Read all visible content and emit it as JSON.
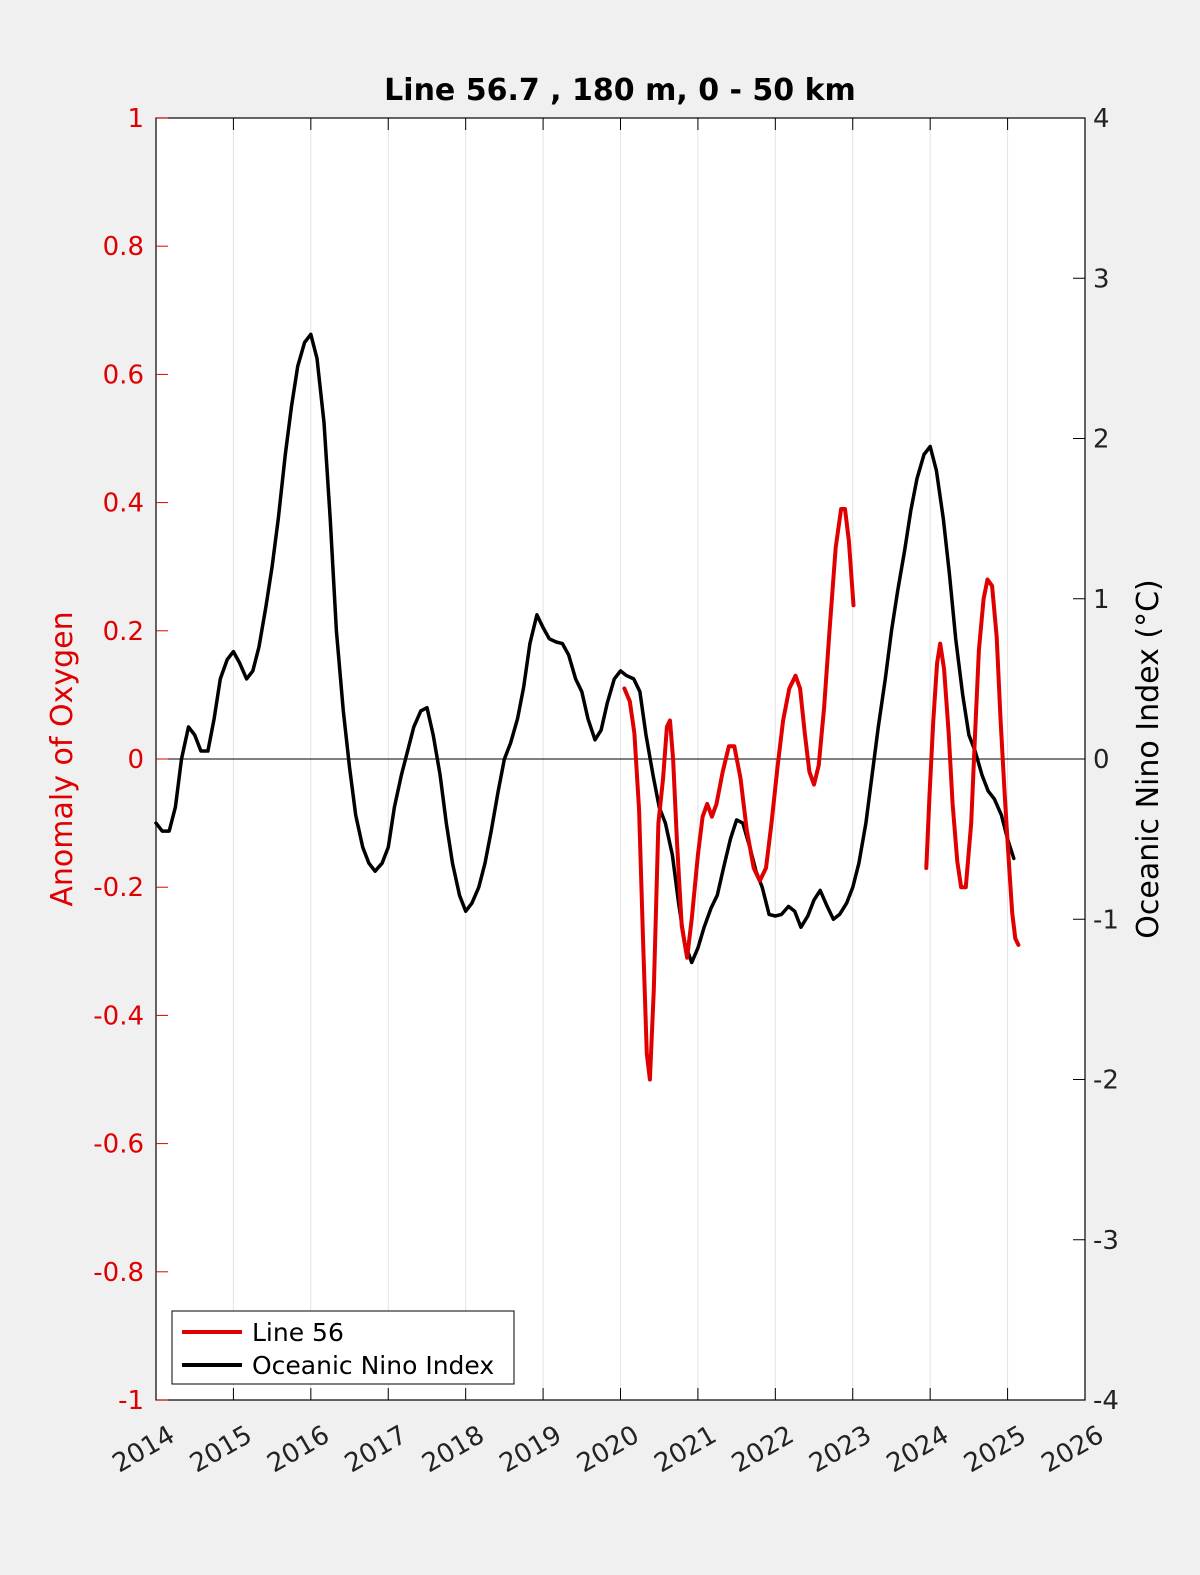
{
  "chart_data": {
    "type": "line",
    "title": "Line 56.7 , 180 m, 0 - 50 km",
    "xlabel": "",
    "ylabel_left": "Anomaly of Oxygen",
    "ylabel_right": "Oceanic Nino Index (°C)",
    "xlim": [
      2014,
      2026
    ],
    "ylim_left": [
      -1,
      1
    ],
    "ylim_right": [
      -4,
      4
    ],
    "x_ticks": [
      "2014",
      "2015",
      "2016",
      "2017",
      "2018",
      "2019",
      "2020",
      "2021",
      "2022",
      "2023",
      "2024",
      "2025",
      "2026"
    ],
    "y_left_ticks": [
      "1",
      "0.8",
      "0.6",
      "0.4",
      "0.2",
      "0",
      "-0.2",
      "-0.4",
      "-0.6",
      "-0.8",
      "-1"
    ],
    "y_right_ticks": [
      "4",
      "3",
      "2",
      "1",
      "0",
      "-1",
      "-2",
      "-3",
      "-4"
    ],
    "grid": "vertical",
    "legend_location": "bottom-left",
    "colors": {
      "line56": "#e00000",
      "oni": "#000000",
      "left_axis": "#e00000",
      "right_axis": "#000000"
    },
    "series": [
      {
        "name": "Line 56",
        "axis": "left",
        "segments": [
          [
            [
              2020.05,
              0.11
            ],
            [
              2020.12,
              0.09
            ],
            [
              2020.18,
              0.04
            ],
            [
              2020.24,
              -0.08
            ],
            [
              2020.29,
              -0.28
            ],
            [
              2020.34,
              -0.46
            ],
            [
              2020.38,
              -0.5
            ],
            [
              2020.43,
              -0.36
            ],
            [
              2020.49,
              -0.1
            ],
            [
              2020.55,
              -0.03
            ],
            [
              2020.6,
              0.05
            ],
            [
              2020.64,
              0.06
            ],
            [
              2020.68,
              0.0
            ],
            [
              2020.73,
              -0.13
            ],
            [
              2020.79,
              -0.26
            ],
            [
              2020.86,
              -0.31
            ],
            [
              2020.92,
              -0.25
            ],
            [
              2021.0,
              -0.15
            ],
            [
              2021.06,
              -0.09
            ],
            [
              2021.12,
              -0.07
            ],
            [
              2021.18,
              -0.09
            ],
            [
              2021.24,
              -0.07
            ],
            [
              2021.32,
              -0.02
            ],
            [
              2021.4,
              0.02
            ],
            [
              2021.47,
              0.02
            ],
            [
              2021.55,
              -0.03
            ],
            [
              2021.63,
              -0.11
            ],
            [
              2021.72,
              -0.17
            ],
            [
              2021.8,
              -0.19
            ],
            [
              2021.88,
              -0.17
            ],
            [
              2021.95,
              -0.1
            ],
            [
              2022.03,
              -0.01
            ],
            [
              2022.1,
              0.06
            ],
            [
              2022.18,
              0.11
            ],
            [
              2022.26,
              0.13
            ],
            [
              2022.32,
              0.11
            ],
            [
              2022.38,
              0.04
            ],
            [
              2022.44,
              -0.02
            ],
            [
              2022.5,
              -0.04
            ],
            [
              2022.56,
              -0.01
            ],
            [
              2022.63,
              0.08
            ],
            [
              2022.7,
              0.2
            ],
            [
              2022.78,
              0.33
            ],
            [
              2022.85,
              0.39
            ],
            [
              2022.9,
              0.39
            ],
            [
              2022.95,
              0.34
            ],
            [
              2023.01,
              0.24
            ]
          ],
          [
            [
              2023.95,
              -0.17
            ],
            [
              2023.99,
              -0.06
            ],
            [
              2024.04,
              0.06
            ],
            [
              2024.09,
              0.15
            ],
            [
              2024.13,
              0.18
            ],
            [
              2024.18,
              0.14
            ],
            [
              2024.24,
              0.04
            ],
            [
              2024.29,
              -0.07
            ],
            [
              2024.35,
              -0.16
            ],
            [
              2024.4,
              -0.2
            ],
            [
              2024.46,
              -0.2
            ],
            [
              2024.53,
              -0.1
            ],
            [
              2024.58,
              0.04
            ],
            [
              2024.63,
              0.17
            ],
            [
              2024.69,
              0.25
            ],
            [
              2024.74,
              0.28
            ],
            [
              2024.8,
              0.27
            ],
            [
              2024.86,
              0.19
            ],
            [
              2024.91,
              0.06
            ],
            [
              2024.96,
              -0.05
            ],
            [
              2025.01,
              -0.15
            ],
            [
              2025.06,
              -0.24
            ],
            [
              2025.1,
              -0.28
            ],
            [
              2025.14,
              -0.29
            ]
          ]
        ]
      },
      {
        "name": "Oceanic Nino Index",
        "axis": "right",
        "points": [
          [
            2014.0,
            -0.4
          ],
          [
            2014.08,
            -0.45
          ],
          [
            2014.17,
            -0.45
          ],
          [
            2014.25,
            -0.3
          ],
          [
            2014.33,
            0.0
          ],
          [
            2014.42,
            0.2
          ],
          [
            2014.5,
            0.15
          ],
          [
            2014.58,
            0.05
          ],
          [
            2014.67,
            0.05
          ],
          [
            2014.75,
            0.25
          ],
          [
            2014.83,
            0.5
          ],
          [
            2014.92,
            0.62
          ],
          [
            2015.0,
            0.67
          ],
          [
            2015.08,
            0.6
          ],
          [
            2015.17,
            0.5
          ],
          [
            2015.25,
            0.55
          ],
          [
            2015.33,
            0.7
          ],
          [
            2015.42,
            0.95
          ],
          [
            2015.5,
            1.2
          ],
          [
            2015.58,
            1.5
          ],
          [
            2015.67,
            1.9
          ],
          [
            2015.75,
            2.2
          ],
          [
            2015.83,
            2.45
          ],
          [
            2015.92,
            2.6
          ],
          [
            2016.0,
            2.65
          ],
          [
            2016.08,
            2.5
          ],
          [
            2016.17,
            2.1
          ],
          [
            2016.25,
            1.5
          ],
          [
            2016.33,
            0.8
          ],
          [
            2016.42,
            0.3
          ],
          [
            2016.5,
            -0.05
          ],
          [
            2016.58,
            -0.35
          ],
          [
            2016.67,
            -0.55
          ],
          [
            2016.75,
            -0.65
          ],
          [
            2016.83,
            -0.7
          ],
          [
            2016.92,
            -0.65
          ],
          [
            2017.0,
            -0.55
          ],
          [
            2017.08,
            -0.3
          ],
          [
            2017.17,
            -0.1
          ],
          [
            2017.25,
            0.05
          ],
          [
            2017.33,
            0.2
          ],
          [
            2017.42,
            0.3
          ],
          [
            2017.5,
            0.32
          ],
          [
            2017.58,
            0.15
          ],
          [
            2017.67,
            -0.1
          ],
          [
            2017.75,
            -0.4
          ],
          [
            2017.83,
            -0.65
          ],
          [
            2017.92,
            -0.85
          ],
          [
            2018.0,
            -0.95
          ],
          [
            2018.08,
            -0.9
          ],
          [
            2018.17,
            -0.8
          ],
          [
            2018.25,
            -0.65
          ],
          [
            2018.33,
            -0.45
          ],
          [
            2018.42,
            -0.2
          ],
          [
            2018.5,
            0.0
          ],
          [
            2018.58,
            0.1
          ],
          [
            2018.67,
            0.25
          ],
          [
            2018.75,
            0.45
          ],
          [
            2018.83,
            0.72
          ],
          [
            2018.92,
            0.9
          ],
          [
            2019.0,
            0.82
          ],
          [
            2019.08,
            0.75
          ],
          [
            2019.17,
            0.73
          ],
          [
            2019.25,
            0.72
          ],
          [
            2019.33,
            0.65
          ],
          [
            2019.42,
            0.5
          ],
          [
            2019.5,
            0.42
          ],
          [
            2019.58,
            0.25
          ],
          [
            2019.67,
            0.12
          ],
          [
            2019.75,
            0.18
          ],
          [
            2019.83,
            0.35
          ],
          [
            2019.92,
            0.5
          ],
          [
            2020.0,
            0.55
          ],
          [
            2020.08,
            0.52
          ],
          [
            2020.17,
            0.5
          ],
          [
            2020.25,
            0.42
          ],
          [
            2020.33,
            0.15
          ],
          [
            2020.42,
            -0.1
          ],
          [
            2020.5,
            -0.3
          ],
          [
            2020.58,
            -0.4
          ],
          [
            2020.67,
            -0.6
          ],
          [
            2020.75,
            -0.9
          ],
          [
            2020.83,
            -1.15
          ],
          [
            2020.92,
            -1.27
          ],
          [
            2021.0,
            -1.18
          ],
          [
            2021.08,
            -1.05
          ],
          [
            2021.17,
            -0.93
          ],
          [
            2021.25,
            -0.85
          ],
          [
            2021.33,
            -0.68
          ],
          [
            2021.42,
            -0.5
          ],
          [
            2021.5,
            -0.38
          ],
          [
            2021.58,
            -0.4
          ],
          [
            2021.67,
            -0.55
          ],
          [
            2021.75,
            -0.7
          ],
          [
            2021.83,
            -0.8
          ],
          [
            2021.92,
            -0.97
          ],
          [
            2022.0,
            -0.98
          ],
          [
            2022.08,
            -0.97
          ],
          [
            2022.17,
            -0.92
          ],
          [
            2022.25,
            -0.95
          ],
          [
            2022.33,
            -1.05
          ],
          [
            2022.42,
            -0.98
          ],
          [
            2022.5,
            -0.88
          ],
          [
            2022.58,
            -0.82
          ],
          [
            2022.67,
            -0.92
          ],
          [
            2022.75,
            -1.0
          ],
          [
            2022.83,
            -0.97
          ],
          [
            2022.92,
            -0.9
          ],
          [
            2023.0,
            -0.8
          ],
          [
            2023.08,
            -0.65
          ],
          [
            2023.17,
            -0.4
          ],
          [
            2023.25,
            -0.1
          ],
          [
            2023.33,
            0.2
          ],
          [
            2023.42,
            0.5
          ],
          [
            2023.5,
            0.8
          ],
          [
            2023.58,
            1.05
          ],
          [
            2023.67,
            1.3
          ],
          [
            2023.75,
            1.55
          ],
          [
            2023.83,
            1.75
          ],
          [
            2023.92,
            1.9
          ],
          [
            2024.0,
            1.95
          ],
          [
            2024.08,
            1.8
          ],
          [
            2024.17,
            1.5
          ],
          [
            2024.25,
            1.15
          ],
          [
            2024.33,
            0.75
          ],
          [
            2024.42,
            0.4
          ],
          [
            2024.5,
            0.15
          ],
          [
            2024.58,
            0.05
          ],
          [
            2024.67,
            -0.1
          ],
          [
            2024.75,
            -0.2
          ],
          [
            2024.83,
            -0.25
          ],
          [
            2024.92,
            -0.35
          ],
          [
            2025.0,
            -0.5
          ],
          [
            2025.08,
            -0.62
          ]
        ]
      }
    ]
  }
}
